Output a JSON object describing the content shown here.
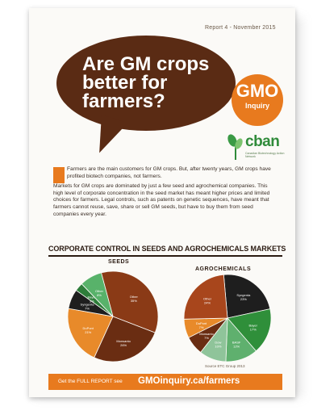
{
  "flyer": {
    "report_label": "Report 4 - November 2015",
    "headline": [
      "Are GM crops",
      "better for",
      "farmers?"
    ],
    "gmo_logo": {
      "main": "GMO",
      "sub": "Inquiry"
    },
    "cban_logo": {
      "name": "cban",
      "tagline": "Canadian Biotechnology Action Network"
    },
    "intro_paragraphs": [
      "Farmers are the main customers for GM crops. But, after twenty years, GM crops have profited biotech companies, not farmers.",
      "Markets for GM crops are dominated by just a few seed and agrochemical companies. This high level of corporate concentration in the seed market has meant higher prices and limited choices for farmers. Legal controls, such as patents on genetic sequences, have meant that farmers cannot reuse, save, share or sell GM seeds, but have to buy them from seed companies every year."
    ],
    "section_title": "CORPORATE CONTROL IN SEEDS AND AGROCHEMICALS MARKETS",
    "source": "Source ETC Group 2013",
    "footer": {
      "prefix": "Get the FULL REPORT see",
      "url": "GMOinquiry.ca/farmers"
    }
  },
  "chart_data": [
    {
      "type": "pie",
      "title": "SEEDS",
      "slices": [
        {
          "label": "Other",
          "value": 35,
          "color": "#8a3a16"
        },
        {
          "label": "Monsanto",
          "value": 26,
          "color": "#6a2d12"
        },
        {
          "label": "DuPont",
          "value": 21,
          "color": "#e88a2a"
        },
        {
          "label": "Syngenta",
          "value": 7,
          "color": "#1e1e1e"
        },
        {
          "label": "Bayer",
          "value": 3,
          "color": "#2e7d3a"
        },
        {
          "label": "Other",
          "value": 8,
          "color": "#58b26a"
        }
      ]
    },
    {
      "type": "pie",
      "title": "AGROCHEMICALS",
      "slices": [
        {
          "label": "Syngenta",
          "value": 23,
          "color": "#1e1e1e"
        },
        {
          "label": "Bayer",
          "value": 17,
          "color": "#2f8f3a"
        },
        {
          "label": "BASF",
          "value": 12,
          "color": "#5fb06e"
        },
        {
          "label": "Dow",
          "value": 10,
          "color": "#8fc49a"
        },
        {
          "label": "Monsanto",
          "value": 7,
          "color": "#6a2d12"
        },
        {
          "label": "DuPont",
          "value": 7,
          "color": "#e88a2a"
        },
        {
          "label": "Other",
          "value": 24,
          "color": "#a8461c"
        }
      ]
    }
  ]
}
